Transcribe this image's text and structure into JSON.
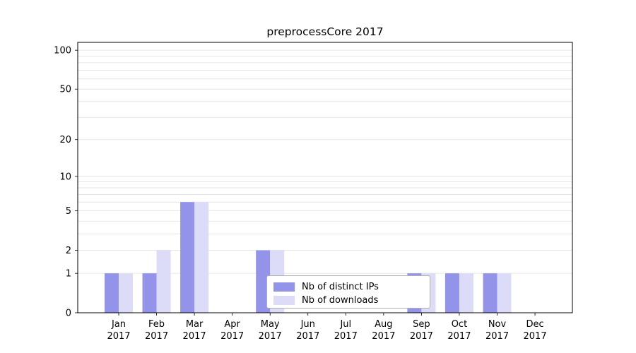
{
  "chart_data": {
    "type": "bar",
    "title": "preprocessCore 2017",
    "categories": [
      "Jan",
      "Feb",
      "Mar",
      "Apr",
      "May",
      "Jun",
      "Jul",
      "Aug",
      "Sep",
      "Oct",
      "Nov",
      "Dec"
    ],
    "year_label": "2017",
    "series": [
      {
        "name": "Nb of distinct IPs",
        "color": "#9394e9",
        "values": [
          1,
          1,
          6,
          0,
          2,
          0,
          0,
          0,
          1,
          1,
          1,
          0
        ]
      },
      {
        "name": "Nb of downloads",
        "color": "#dcdcf8",
        "values": [
          1,
          2,
          6,
          0,
          2,
          0,
          0,
          0,
          1,
          1,
          1,
          0
        ]
      }
    ],
    "xlabel": "",
    "ylabel": "",
    "yticks": [
      0,
      1,
      2,
      5,
      10,
      20,
      50,
      100
    ],
    "ylim": [
      0,
      115
    ],
    "scale": "log1p",
    "grid": true,
    "legend_position": "lower center",
    "colors": {
      "grid": "#e6e6e6",
      "frame": "#000000",
      "text": "#000000",
      "legend_border": "#b0b0b0",
      "background": "#ffffff"
    }
  }
}
